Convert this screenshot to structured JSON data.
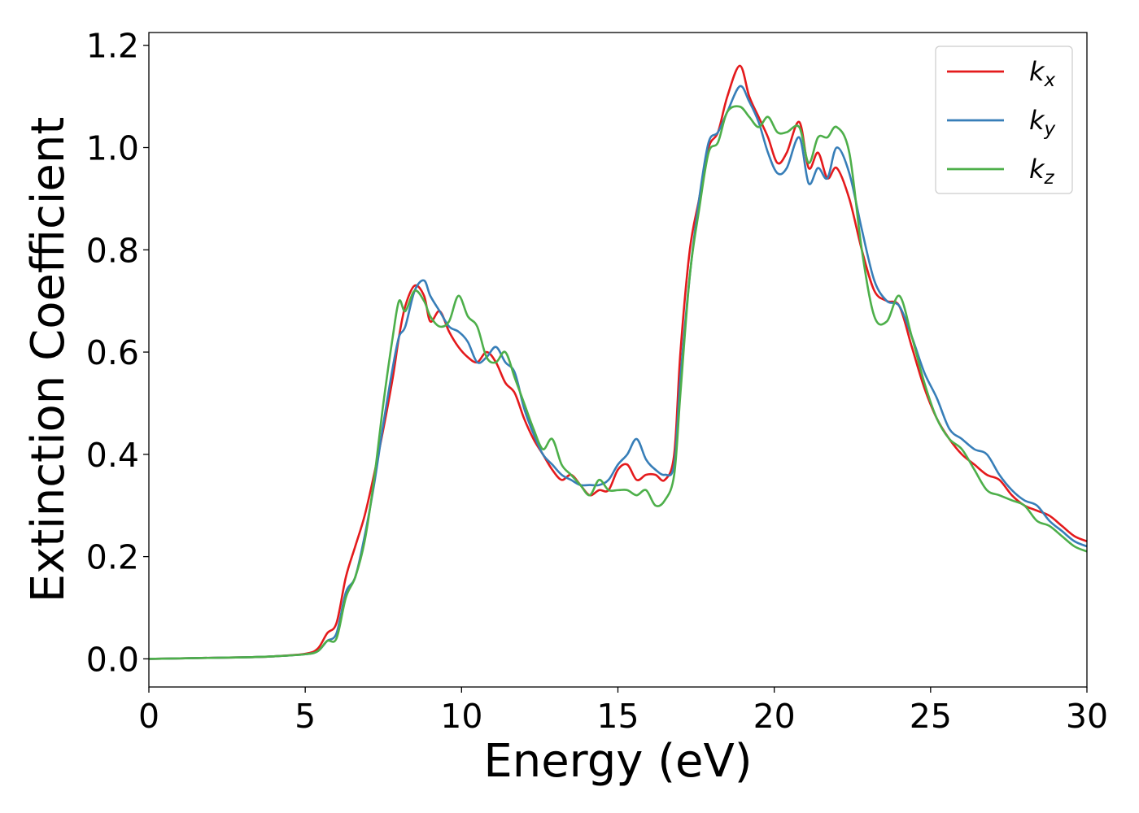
{
  "chart_data": {
    "type": "line",
    "xlabel": "Energy (eV)",
    "ylabel": "Extinction Coefficient",
    "xlim": [
      0,
      30
    ],
    "ylim": [
      -0.055,
      1.225
    ],
    "xticks": [
      0,
      5,
      10,
      15,
      20,
      25,
      30
    ],
    "xtick_labels": [
      "0",
      "5",
      "10",
      "15",
      "20",
      "25",
      "30"
    ],
    "yticks": [
      0.0,
      0.2,
      0.4,
      0.6,
      0.8,
      1.0,
      1.2
    ],
    "ytick_labels": [
      "0.0",
      "0.2",
      "0.4",
      "0.6",
      "0.8",
      "1.0",
      "1.2"
    ],
    "grid": false,
    "legend_position": "top-right",
    "series": [
      {
        "name": "k",
        "subscript": "x",
        "color": "#e41a1c",
        "x": [
          0,
          1,
          2,
          3,
          4,
          5,
          5.4,
          5.7,
          6.0,
          6.3,
          6.6,
          6.9,
          7.2,
          7.5,
          7.8,
          8.0,
          8.2,
          8.5,
          8.8,
          9.0,
          9.3,
          9.6,
          9.9,
          10.2,
          10.5,
          10.8,
          11.1,
          11.4,
          11.7,
          12.0,
          12.3,
          12.6,
          12.9,
          13.2,
          13.5,
          13.8,
          14.1,
          14.4,
          14.7,
          15.0,
          15.3,
          15.6,
          15.9,
          16.2,
          16.5,
          16.8,
          17.0,
          17.3,
          17.6,
          17.9,
          18.2,
          18.5,
          18.9,
          19.2,
          19.5,
          19.8,
          20.1,
          20.4,
          20.8,
          21.1,
          21.4,
          21.7,
          22.0,
          22.4,
          22.8,
          23.2,
          23.6,
          24.0,
          24.4,
          24.8,
          25.2,
          25.6,
          26.0,
          26.4,
          26.8,
          27.2,
          27.6,
          28.0,
          28.4,
          28.8,
          29.2,
          29.6,
          30
        ],
        "y": [
          0.0,
          0.001,
          0.002,
          0.003,
          0.005,
          0.01,
          0.02,
          0.05,
          0.07,
          0.16,
          0.22,
          0.28,
          0.36,
          0.45,
          0.55,
          0.63,
          0.69,
          0.73,
          0.71,
          0.66,
          0.68,
          0.64,
          0.61,
          0.59,
          0.58,
          0.6,
          0.58,
          0.54,
          0.52,
          0.47,
          0.43,
          0.4,
          0.37,
          0.35,
          0.36,
          0.34,
          0.32,
          0.33,
          0.33,
          0.37,
          0.38,
          0.35,
          0.36,
          0.36,
          0.35,
          0.4,
          0.6,
          0.8,
          0.9,
          1.0,
          1.03,
          1.1,
          1.16,
          1.1,
          1.06,
          1.02,
          0.97,
          0.99,
          1.05,
          0.96,
          0.99,
          0.94,
          0.96,
          0.9,
          0.8,
          0.72,
          0.7,
          0.69,
          0.61,
          0.53,
          0.47,
          0.43,
          0.4,
          0.38,
          0.36,
          0.35,
          0.32,
          0.3,
          0.29,
          0.28,
          0.26,
          0.24,
          0.23
        ]
      },
      {
        "name": "k",
        "subscript": "y",
        "color": "#377eb8",
        "x": [
          0,
          1,
          2,
          3,
          4,
          5,
          5.4,
          5.7,
          6.0,
          6.3,
          6.6,
          6.9,
          7.2,
          7.5,
          7.8,
          8.0,
          8.2,
          8.5,
          8.8,
          9.0,
          9.3,
          9.6,
          9.9,
          10.2,
          10.5,
          10.8,
          11.1,
          11.4,
          11.7,
          12.0,
          12.3,
          12.6,
          12.9,
          13.2,
          13.5,
          13.8,
          14.1,
          14.4,
          14.7,
          15.0,
          15.3,
          15.6,
          15.9,
          16.2,
          16.5,
          16.8,
          17.0,
          17.3,
          17.6,
          17.9,
          18.2,
          18.5,
          18.9,
          19.2,
          19.5,
          19.8,
          20.1,
          20.4,
          20.8,
          21.1,
          21.4,
          21.7,
          22.0,
          22.4,
          22.8,
          23.2,
          23.6,
          24.0,
          24.4,
          24.8,
          25.2,
          25.6,
          26.0,
          26.4,
          26.8,
          27.2,
          27.6,
          28.0,
          28.4,
          28.8,
          29.2,
          29.6,
          30
        ],
        "y": [
          0.0,
          0.001,
          0.002,
          0.003,
          0.005,
          0.009,
          0.015,
          0.035,
          0.05,
          0.13,
          0.16,
          0.24,
          0.34,
          0.46,
          0.57,
          0.63,
          0.65,
          0.72,
          0.74,
          0.71,
          0.68,
          0.65,
          0.64,
          0.62,
          0.58,
          0.59,
          0.61,
          0.58,
          0.56,
          0.49,
          0.44,
          0.4,
          0.38,
          0.36,
          0.35,
          0.34,
          0.34,
          0.34,
          0.35,
          0.38,
          0.4,
          0.43,
          0.39,
          0.37,
          0.36,
          0.38,
          0.55,
          0.75,
          0.9,
          1.01,
          1.03,
          1.07,
          1.12,
          1.09,
          1.05,
          0.99,
          0.95,
          0.96,
          1.02,
          0.93,
          0.96,
          0.94,
          1.0,
          0.95,
          0.84,
          0.74,
          0.7,
          0.69,
          0.63,
          0.56,
          0.51,
          0.45,
          0.43,
          0.41,
          0.4,
          0.36,
          0.33,
          0.31,
          0.3,
          0.27,
          0.25,
          0.23,
          0.22
        ]
      },
      {
        "name": "k",
        "subscript": "z",
        "color": "#4daf4a",
        "x": [
          0,
          1,
          2,
          3,
          4,
          5,
          5.4,
          5.7,
          6.0,
          6.3,
          6.6,
          6.9,
          7.2,
          7.5,
          7.8,
          8.0,
          8.2,
          8.5,
          8.8,
          9.0,
          9.3,
          9.6,
          9.9,
          10.2,
          10.5,
          10.8,
          11.1,
          11.4,
          11.7,
          12.0,
          12.3,
          12.6,
          12.9,
          13.2,
          13.5,
          13.8,
          14.1,
          14.4,
          14.7,
          15.0,
          15.3,
          15.6,
          15.9,
          16.2,
          16.5,
          16.8,
          17.0,
          17.3,
          17.6,
          17.9,
          18.2,
          18.5,
          18.9,
          19.2,
          19.5,
          19.8,
          20.1,
          20.4,
          20.8,
          21.1,
          21.4,
          21.7,
          22.0,
          22.4,
          22.8,
          23.2,
          23.6,
          24.0,
          24.4,
          24.8,
          25.2,
          25.6,
          26.0,
          26.4,
          26.8,
          27.2,
          27.6,
          28.0,
          28.4,
          28.8,
          29.2,
          29.6,
          30
        ],
        "y": [
          0.0,
          0.001,
          0.002,
          0.003,
          0.005,
          0.009,
          0.015,
          0.035,
          0.04,
          0.12,
          0.16,
          0.23,
          0.35,
          0.5,
          0.63,
          0.7,
          0.68,
          0.72,
          0.7,
          0.67,
          0.65,
          0.66,
          0.71,
          0.67,
          0.65,
          0.59,
          0.58,
          0.6,
          0.55,
          0.5,
          0.45,
          0.41,
          0.43,
          0.38,
          0.36,
          0.34,
          0.32,
          0.35,
          0.33,
          0.33,
          0.33,
          0.32,
          0.33,
          0.3,
          0.31,
          0.36,
          0.52,
          0.75,
          0.88,
          0.99,
          1.01,
          1.07,
          1.08,
          1.06,
          1.04,
          1.06,
          1.03,
          1.03,
          1.04,
          0.97,
          1.02,
          1.02,
          1.04,
          0.99,
          0.8,
          0.67,
          0.66,
          0.71,
          0.63,
          0.54,
          0.47,
          0.43,
          0.41,
          0.37,
          0.33,
          0.32,
          0.31,
          0.3,
          0.27,
          0.26,
          0.24,
          0.22,
          0.21
        ]
      }
    ]
  }
}
